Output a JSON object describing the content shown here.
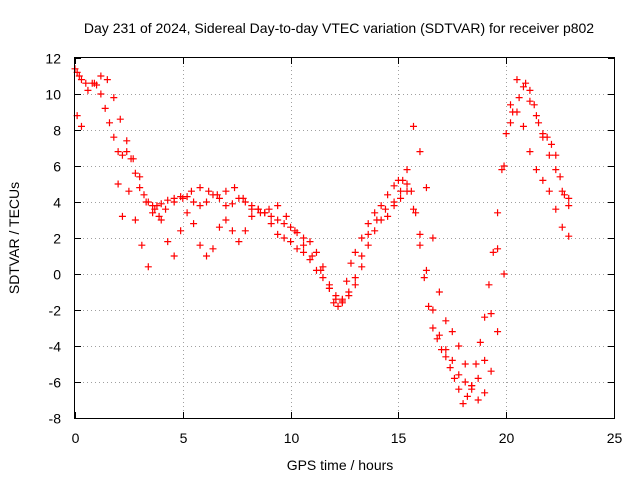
{
  "chart_data": {
    "type": "scatter",
    "title": "Day 231 of 2024, Sidereal Day-to-day VTEC variation (SDTVAR) for receiver p802",
    "xlabel": "GPS time / hours",
    "ylabel": "SDTVAR / TECUs",
    "xlim": [
      0,
      25
    ],
    "ylim": [
      -8,
      12
    ],
    "x_ticks": [
      0,
      5,
      10,
      15,
      20,
      25
    ],
    "y_ticks": [
      -8,
      -6,
      -4,
      -2,
      0,
      2,
      4,
      6,
      8,
      10,
      12
    ],
    "x_tick_labels": [
      "0",
      "5",
      "10",
      "15",
      "20",
      "25"
    ],
    "y_tick_labels": [
      "-8",
      "-6",
      "-4",
      "-2",
      "0",
      "2",
      "4",
      "6",
      "8",
      "10",
      "12"
    ],
    "grid": true,
    "legend": false,
    "marker": "+",
    "color": "#ff0000",
    "series": [
      {
        "x": [
          0.0,
          0.1,
          0.2,
          0.3,
          0.5,
          0.8,
          1.0,
          1.2,
          1.4,
          1.6,
          1.8,
          2.0,
          2.2,
          2.4,
          2.6,
          2.8,
          3.0,
          3.2,
          3.4,
          3.6,
          3.8,
          4.0,
          4.3,
          4.6,
          4.9,
          5.2,
          5.5,
          5.8,
          6.1,
          6.4,
          6.7,
          7.0,
          7.3,
          7.6,
          7.9,
          8.2,
          8.5,
          8.8,
          9.1,
          9.4,
          9.7,
          10.0,
          10.3,
          10.6,
          10.9,
          11.2,
          11.5,
          11.8,
          12.0,
          12.2,
          12.4,
          12.6,
          12.8,
          13.0,
          13.3,
          13.6,
          13.9,
          14.2,
          14.5,
          14.8,
          15.0,
          15.2,
          15.4,
          15.6,
          15.8,
          16.0,
          16.2,
          16.4,
          16.6,
          16.8,
          17.0,
          17.2,
          17.4,
          17.6,
          17.8,
          18.0,
          18.2,
          18.4,
          18.6,
          18.8,
          19.0,
          19.2,
          19.4,
          19.6,
          19.8,
          20.0,
          20.3,
          20.6,
          20.9,
          21.1,
          21.3,
          21.5,
          21.7,
          21.9,
          22.1,
          22.3,
          22.5,
          22.7,
          22.9
        ],
        "y": [
          11.4,
          11.2,
          11.0,
          10.8,
          10.6,
          10.6,
          10.5,
          10.0,
          9.2,
          8.4,
          7.6,
          6.8,
          6.6,
          6.8,
          6.4,
          5.6,
          4.8,
          4.4,
          4.0,
          3.8,
          3.8,
          3.9,
          4.1,
          4.2,
          4.3,
          4.3,
          4.0,
          3.8,
          4.0,
          4.4,
          4.2,
          3.8,
          3.9,
          4.2,
          4.0,
          3.8,
          3.6,
          3.4,
          3.2,
          3.0,
          2.8,
          2.6,
          2.3,
          2.0,
          1.8,
          1.2,
          0.4,
          -0.8,
          -1.6,
          -1.8,
          -1.5,
          -0.4,
          0.6,
          1.2,
          2.0,
          2.8,
          3.4,
          3.8,
          4.4,
          4.9,
          5.2,
          5.2,
          5.0,
          4.6,
          3.4,
          1.6,
          -0.2,
          -1.8,
          -3.0,
          -3.6,
          -4.2,
          -4.6,
          -5.2,
          -5.8,
          -6.4,
          -7.2,
          -6.8,
          -6.2,
          -5.0,
          -3.8,
          -2.4,
          -0.6,
          1.2,
          3.4,
          5.8,
          7.8,
          9.0,
          9.8,
          10.6,
          10.2,
          9.4,
          8.4,
          7.8,
          7.6,
          7.2,
          6.6,
          5.4,
          4.4,
          3.8
        ]
      },
      {
        "x": [
          0.1,
          0.3,
          0.6,
          0.9,
          1.2,
          1.5,
          1.8,
          2.1,
          2.4,
          2.7,
          3.0,
          3.3,
          3.6,
          3.9,
          4.2,
          4.6,
          5.0,
          5.4,
          5.8,
          6.2,
          6.6,
          7.0,
          7.4,
          7.8,
          8.2,
          8.6,
          9.0,
          9.4,
          9.8,
          10.2,
          10.6,
          11.0,
          11.4,
          11.8,
          12.1,
          12.4,
          12.7,
          13.0,
          13.3,
          13.6,
          14.0,
          14.4,
          14.8,
          15.1,
          15.4,
          15.7,
          16.0,
          16.3,
          16.6,
          16.9,
          17.2,
          17.5,
          17.8,
          18.1,
          18.4,
          18.7,
          19.0,
          19.3,
          19.6,
          19.9,
          20.2,
          20.5,
          20.8,
          21.1,
          21.4,
          21.7,
          22.0,
          22.3,
          22.6,
          22.9
        ],
        "y": [
          8.8,
          8.2,
          10.2,
          10.6,
          11.0,
          10.8,
          9.8,
          8.6,
          7.4,
          6.4,
          5.4,
          4.0,
          3.4,
          3.2,
          3.6,
          4.0,
          4.2,
          4.6,
          4.8,
          4.6,
          4.4,
          4.6,
          4.8,
          4.2,
          3.6,
          3.4,
          3.6,
          3.8,
          3.2,
          2.4,
          1.6,
          1.0,
          0.2,
          -0.6,
          -1.2,
          -1.4,
          -1.0,
          -0.2,
          1.0,
          2.2,
          3.0,
          3.6,
          4.0,
          4.6,
          5.8,
          8.2,
          6.8,
          4.8,
          2.0,
          -1.0,
          -2.6,
          -3.2,
          -4.0,
          -5.0,
          -6.2,
          -7.0,
          -6.6,
          -5.4,
          -3.2,
          0.0,
          8.4,
          10.8,
          10.4,
          9.6,
          8.8,
          7.6,
          6.6,
          5.8,
          4.6,
          4.2
        ]
      },
      {
        "x": [
          2.0,
          2.2,
          2.5,
          2.8,
          3.1,
          3.4,
          3.7,
          4.0,
          4.3,
          4.6,
          4.9,
          5.2,
          5.5,
          5.8,
          6.1,
          6.4,
          6.7,
          7.0,
          7.3,
          7.6,
          7.9,
          8.2,
          8.5,
          8.8,
          9.1,
          9.4,
          9.7,
          10.0,
          10.3,
          10.6,
          10.9,
          11.2,
          11.5,
          11.8,
          12.1,
          12.4,
          12.7,
          13.0,
          13.3,
          13.6,
          13.9,
          14.2,
          14.5,
          14.8,
          15.1,
          15.4,
          15.7,
          16.0,
          16.3,
          16.6,
          16.9,
          17.2,
          17.5,
          17.8,
          18.1,
          18.4,
          18.7,
          19.0,
          19.3,
          19.6,
          19.9,
          20.2,
          20.5,
          20.8,
          21.1,
          21.4,
          21.7,
          22.0,
          22.3,
          22.6,
          22.9
        ],
        "y": [
          5.0,
          3.2,
          4.6,
          3.0,
          1.6,
          0.4,
          3.6,
          3.0,
          1.8,
          1.0,
          2.4,
          3.4,
          2.8,
          1.6,
          1.0,
          1.4,
          2.6,
          3.0,
          2.4,
          1.8,
          2.4,
          3.2,
          3.6,
          3.4,
          2.8,
          2.2,
          2.0,
          1.8,
          1.4,
          1.2,
          0.8,
          0.2,
          -0.2,
          -0.8,
          -1.4,
          -1.6,
          -1.2,
          -0.6,
          0.4,
          1.6,
          2.4,
          3.0,
          3.2,
          3.8,
          4.2,
          4.6,
          3.6,
          2.2,
          0.2,
          -2.0,
          -3.4,
          -4.2,
          -4.8,
          -5.6,
          -6.0,
          -6.4,
          -5.8,
          -4.8,
          -2.2,
          1.4,
          6.0,
          9.4,
          9.0,
          8.2,
          6.8,
          5.8,
          5.2,
          4.6,
          3.6,
          2.6,
          2.1
        ]
      }
    ]
  }
}
